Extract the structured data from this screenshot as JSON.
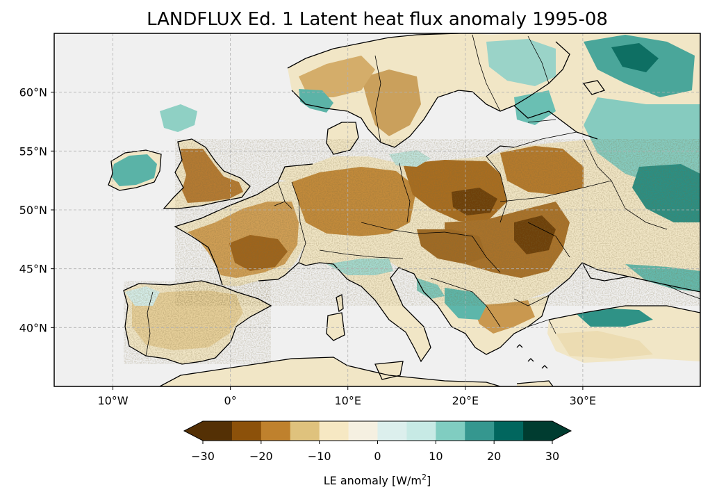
{
  "title": "LANDFLUX Ed. 1 Latent heat flux anomaly 1995-08",
  "map": {
    "lon_range": [
      -15,
      40
    ],
    "lat_range": [
      35,
      65
    ],
    "gridlines": true,
    "lon_ticks": [
      {
        "value": -10,
        "label": "10°W"
      },
      {
        "value": 0,
        "label": "0°"
      },
      {
        "value": 10,
        "label": "10°E"
      },
      {
        "value": 20,
        "label": "20°E"
      },
      {
        "value": 30,
        "label": "30°E"
      }
    ],
    "lat_ticks": [
      {
        "value": 60,
        "label": "60°N"
      },
      {
        "value": 55,
        "label": "55°N"
      },
      {
        "value": 50,
        "label": "50°N"
      },
      {
        "value": 45,
        "label": "45°N"
      },
      {
        "value": 40,
        "label": "40°N"
      }
    ],
    "colors": {
      "ocean": "#f0f0f0",
      "coast": "#000000",
      "grid": "#b0b0b0"
    }
  },
  "colorbar": {
    "label_prefix": "LE anomaly [W/m",
    "label_sup": "2",
    "label_suffix": "]",
    "extend": "both",
    "boundaries": [
      -30,
      -25,
      -20,
      -15,
      -10,
      -5,
      0,
      5,
      10,
      15,
      20,
      25,
      30
    ],
    "colors": [
      "#543005",
      "#8c510a",
      "#bf812d",
      "#dfc27d",
      "#f6e8c3",
      "#f5f0e1",
      "#dcefed",
      "#c7eae5",
      "#80cdc1",
      "#35978f",
      "#01665e",
      "#003c30"
    ],
    "under_color": "#543005",
    "over_color": "#003c30",
    "tick_labels": [
      {
        "value": -30,
        "label": "−30"
      },
      {
        "value": -20,
        "label": "−20"
      },
      {
        "value": -10,
        "label": "−10"
      },
      {
        "value": 0,
        "label": "0"
      },
      {
        "value": 10,
        "label": "10"
      },
      {
        "value": 20,
        "label": "20"
      },
      {
        "value": 30,
        "label": "30"
      }
    ]
  }
}
